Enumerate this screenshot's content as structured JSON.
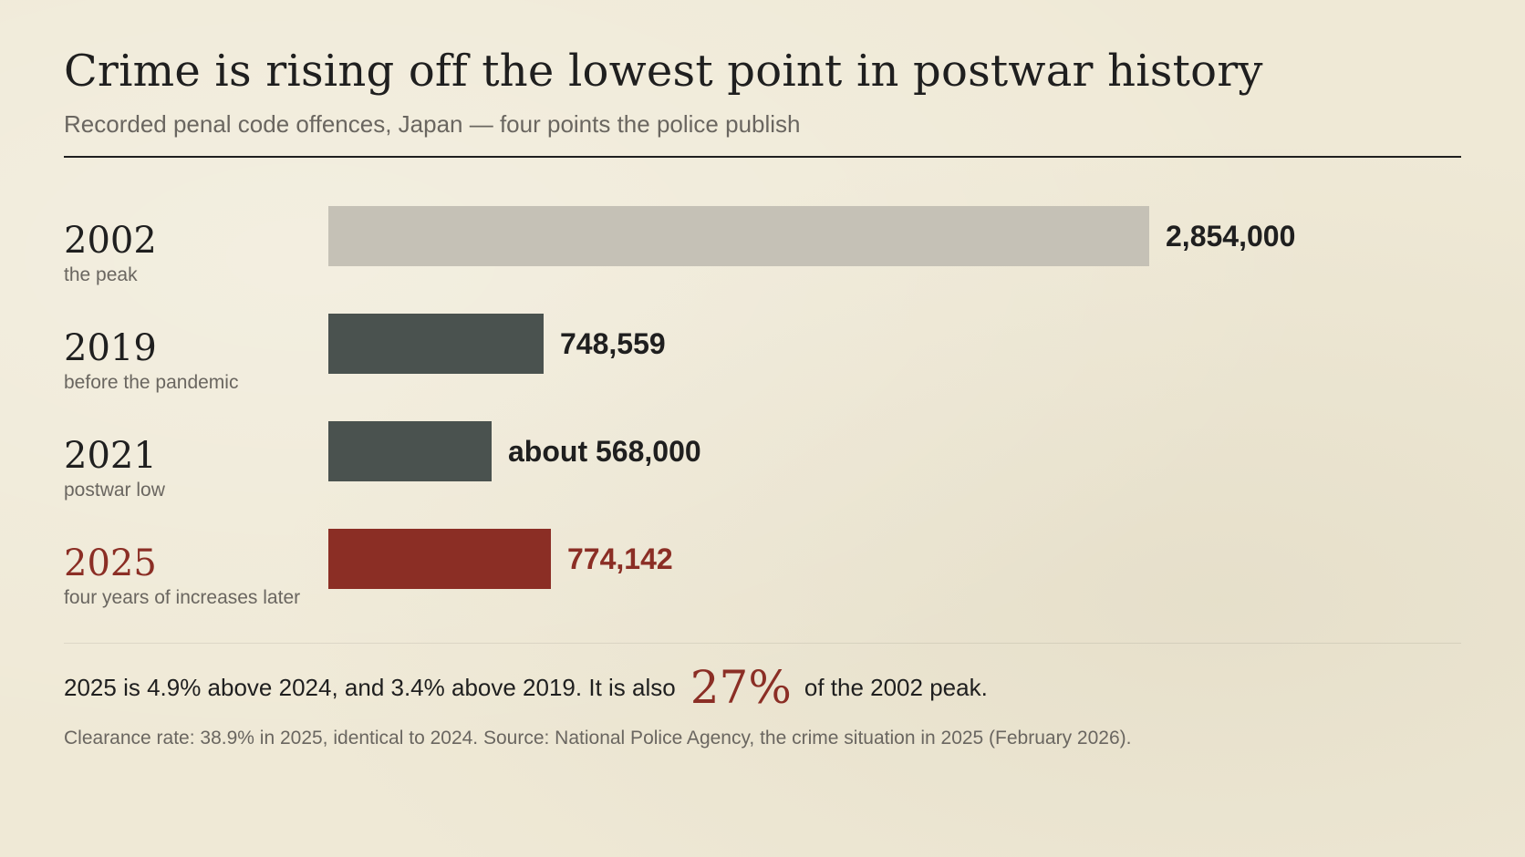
{
  "header": {
    "title": "Crime is rising off the lowest point in postwar history",
    "subtitle": "Recorded penal code offences, Japan — four points the police publish"
  },
  "colors": {
    "peak": "#c5c1b6",
    "normal": "#4a524f",
    "highlight": "#8b2e25",
    "text": "#1f1f1f",
    "muted": "#6a6660"
  },
  "chart_data": {
    "type": "bar",
    "orientation": "horizontal",
    "categories": [
      "2002",
      "2019",
      "2021",
      "2025"
    ],
    "notes": [
      "the peak",
      "before the pandemic",
      "postwar low",
      "four years of increases later"
    ],
    "values": [
      2854000,
      748559,
      568000,
      774142
    ],
    "value_labels": [
      "2,854,000",
      "748,559",
      "about 568,000",
      "774,142"
    ],
    "bar_colors": [
      "#c5c1b6",
      "#4a524f",
      "#4a524f",
      "#8b2e25"
    ],
    "label_colors": [
      "#1f1f1f",
      "#1f1f1f",
      "#1f1f1f",
      "#8b2e25"
    ],
    "year_colors": [
      "#1f1f1f",
      "#1f1f1f",
      "#1f1f1f",
      "#8b2e25"
    ],
    "xlim": [
      0,
      2854000
    ],
    "grid": false,
    "legend": "none"
  },
  "summary": {
    "lead": "2025 is 4.9% above 2024, and 3.4% above 2019. It is also",
    "big": "27%",
    "tail": "of the 2002 peak."
  },
  "footer": {
    "source": "Clearance rate: 38.9% in 2025, identical to 2024. Source: National Police Agency, the crime situation in 2025 (February 2026)."
  }
}
